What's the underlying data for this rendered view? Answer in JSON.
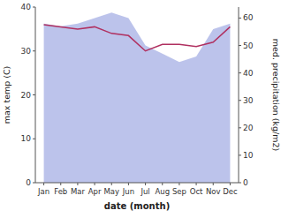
{
  "chart_data": {
    "type": "line",
    "categories": [
      "Jan",
      "Feb",
      "Mar",
      "Apr",
      "May",
      "Jun",
      "Jul",
      "Aug",
      "Sep",
      "Oct",
      "Nov",
      "Dec"
    ],
    "xlabel": "date (month)",
    "ylabel": "max temp (C)",
    "y2label": "med. precipitation (kg/m2)",
    "ylim": [
      0,
      40
    ],
    "yticks": [
      0,
      10,
      20,
      30,
      40
    ],
    "y2lim": [
      0,
      64
    ],
    "y2ticks": [
      0,
      10,
      20,
      30,
      40,
      50,
      60
    ],
    "grid": false,
    "series": [
      {
        "type": "area",
        "axis": "y2",
        "color": "#b0b8e8",
        "values": [
          58,
          57,
          58,
          60,
          62,
          60,
          50,
          47,
          44,
          46,
          56,
          58
        ]
      },
      {
        "type": "line",
        "color": "#b03060",
        "values": [
          36,
          35.5,
          35,
          35.5,
          34,
          33.5,
          30,
          31.5,
          31.5,
          31,
          32,
          35.5
        ]
      }
    ]
  }
}
